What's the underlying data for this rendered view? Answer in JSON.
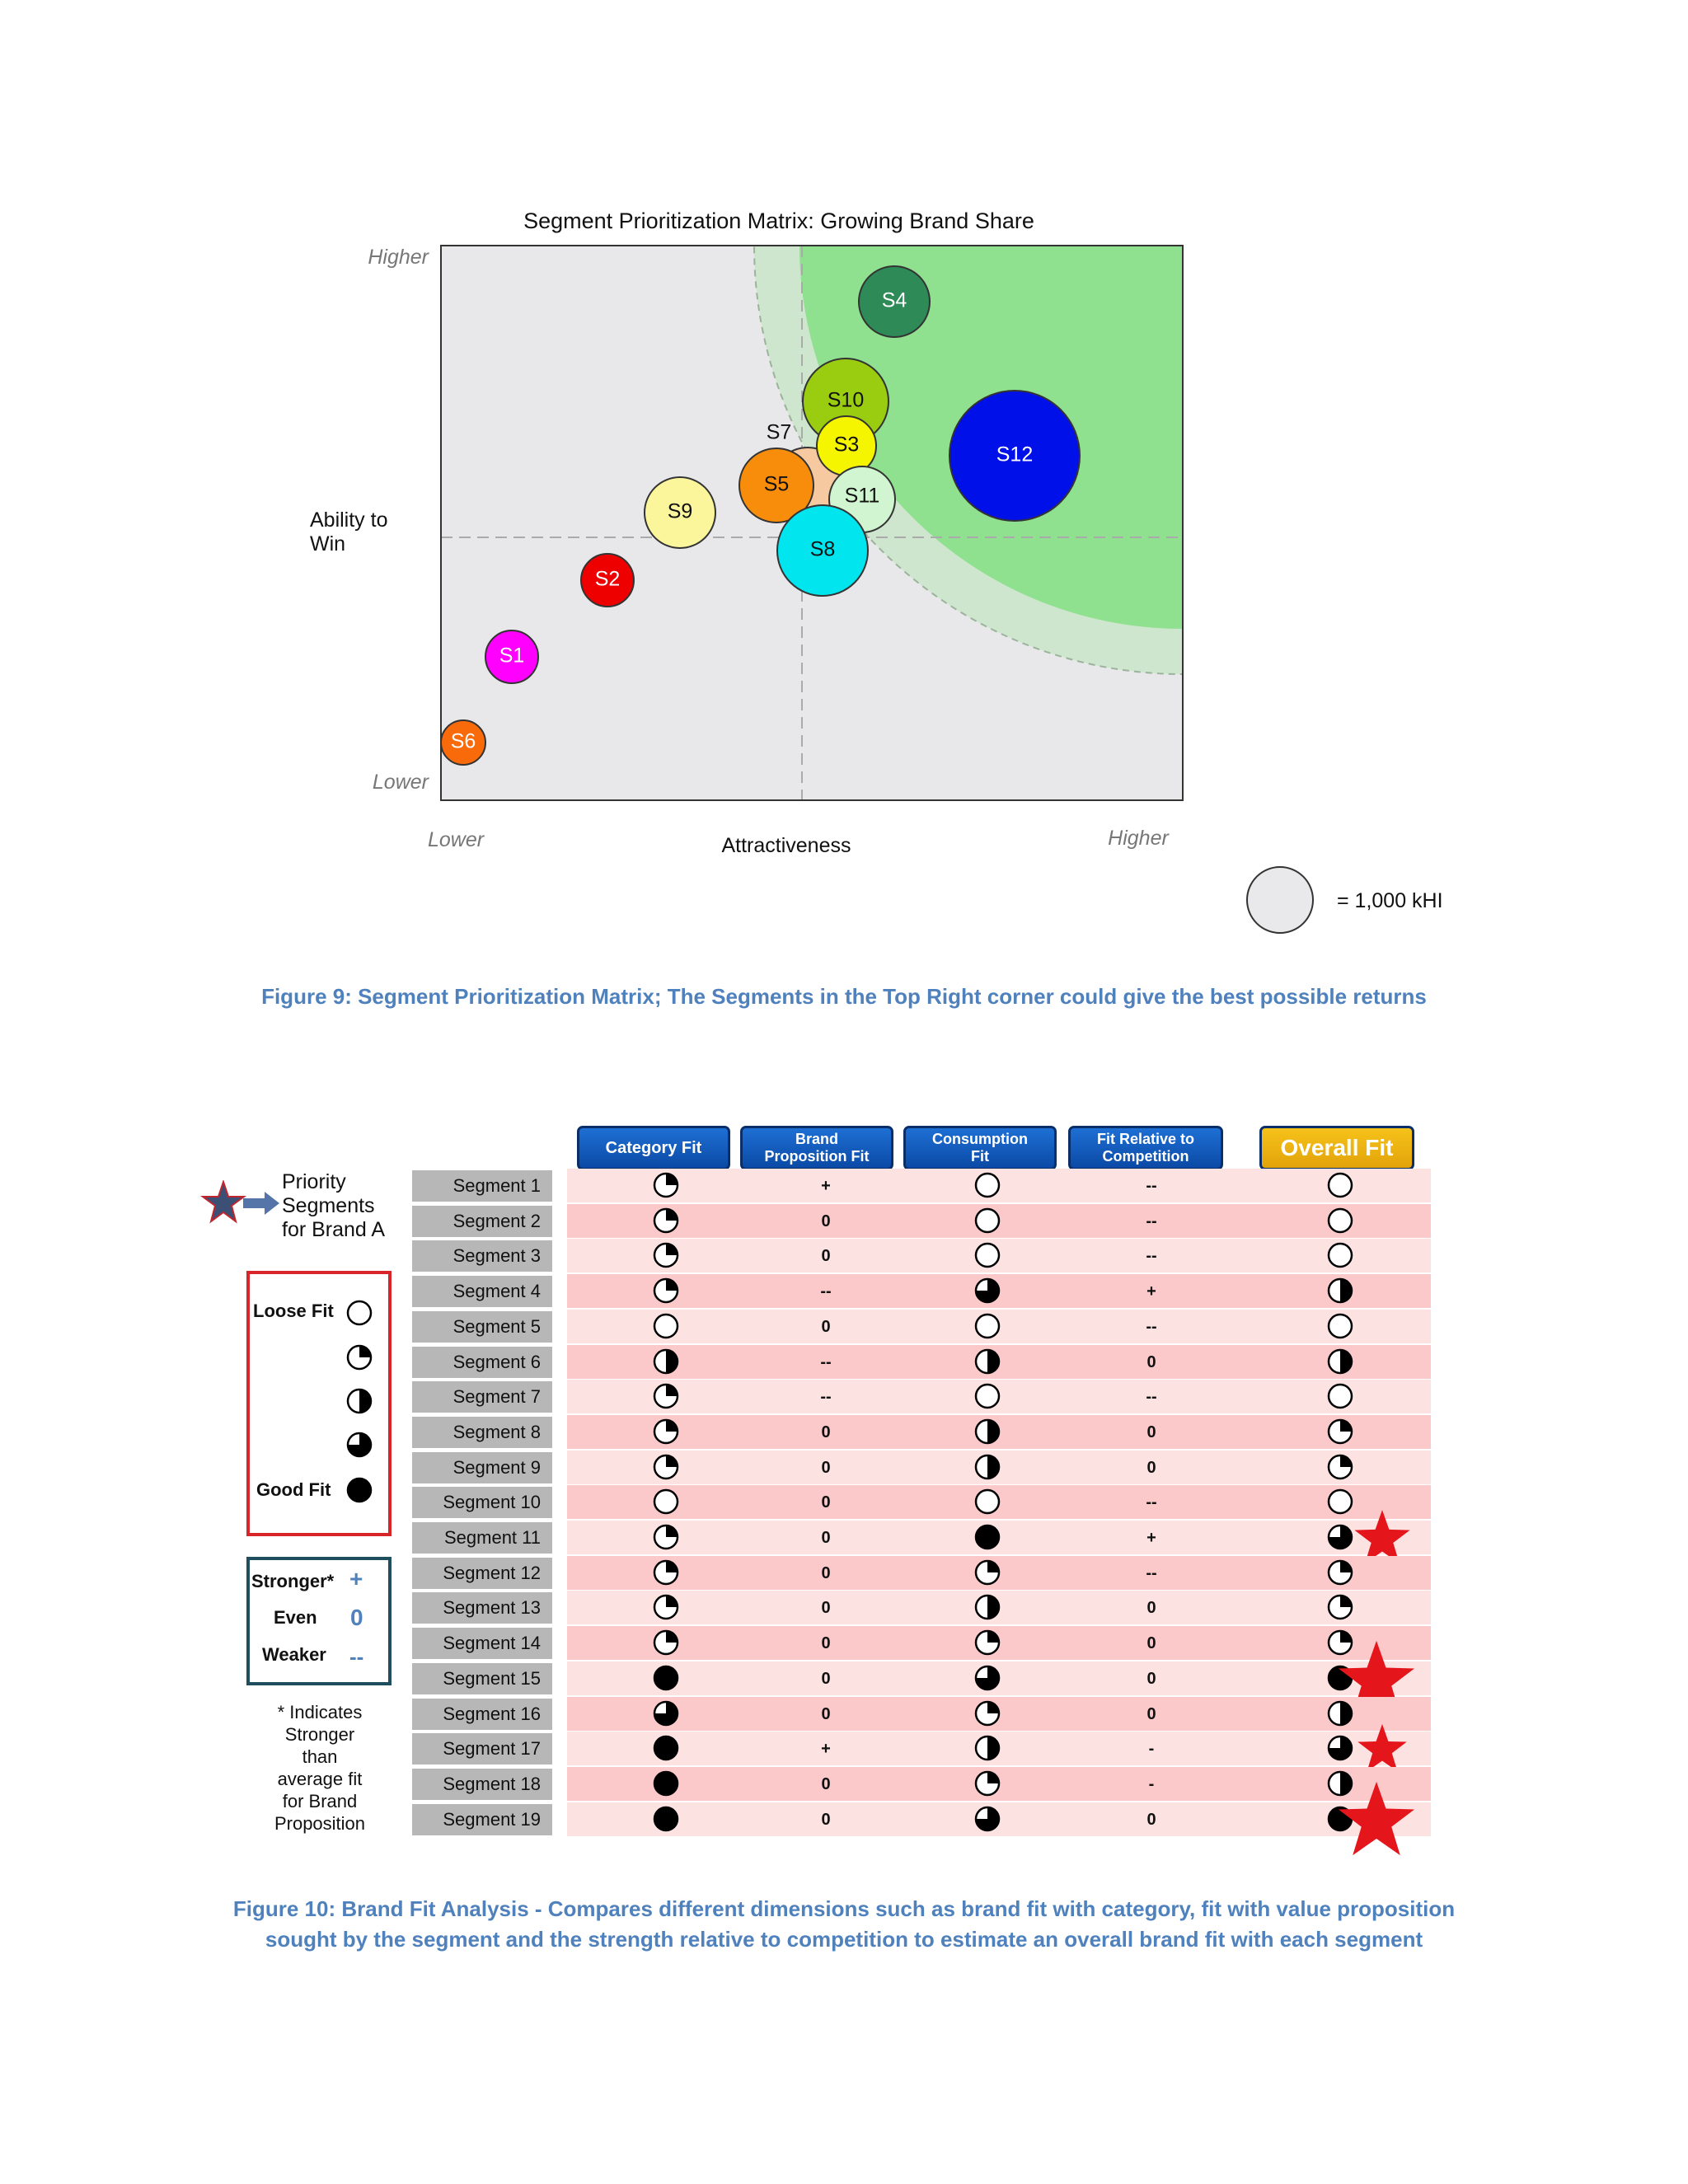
{
  "matrix": {
    "title": "Segment Prioritization Matrix: Growing Brand Share",
    "y_axis": {
      "label_line1": "Ability to",
      "label_line2": "Win",
      "high": "Higher",
      "low": "Lower"
    },
    "x_axis": {
      "label": "Attractiveness",
      "low": "Lower",
      "high": "Higher"
    },
    "size_legend": {
      "text": "= 1,000 kHI"
    },
    "colors": {
      "plot_bg": "#e8e8ea",
      "zone_outer": "#cde6cd",
      "zone_inner": "#8fe08f"
    },
    "bubbles": [
      {
        "label": "S4",
        "color": "#2e8b57",
        "text_color": "#ffffff"
      },
      {
        "label": "S10",
        "color": "#9acd0f",
        "text_color": "#111111"
      },
      {
        "label": "S12",
        "color": "#0010e8",
        "text_color": "#ffffff"
      },
      {
        "label": "S7",
        "color": "#f7c9a1",
        "text_color": "#111111"
      },
      {
        "label": "S3",
        "color": "#f5f500",
        "text_color": "#111111"
      },
      {
        "label": "S11",
        "color": "#d0f5d0",
        "text_color": "#111111"
      },
      {
        "label": "S5",
        "color": "#f78d0a",
        "text_color": "#111111"
      },
      {
        "label": "S9",
        "color": "#fbf59b",
        "text_color": "#111111"
      },
      {
        "label": "S8",
        "color": "#00e5ee",
        "text_color": "#111111"
      },
      {
        "label": "S2",
        "color": "#ee0000",
        "text_color": "#ffffff"
      },
      {
        "label": "S1",
        "color": "#ff00ff",
        "text_color": "#ffffff"
      },
      {
        "label": "S6",
        "color": "#f86a0a",
        "text_color": "#ffffff"
      }
    ]
  },
  "caption_fig9": "Figure 9: Segment Prioritization Matrix; The Segments in the Top Right corner could give the best possible returns",
  "table": {
    "headers": {
      "category_fit": "Category Fit",
      "brand_prop_fit_l1": "Brand",
      "brand_prop_fit_l2": "Proposition Fit",
      "consumption_fit_l1": "Consumption",
      "consumption_fit_l2": "Fit",
      "fit_rel_comp_l1": "Fit Relative to",
      "fit_rel_comp_l2": "Competition",
      "overall_fit": "Overall Fit"
    },
    "legend": {
      "priority_line1": "Priority",
      "priority_line2": "Segments",
      "priority_line3": "for Brand A",
      "loose_fit": "Loose Fit",
      "good_fit": "Good Fit",
      "stronger": "Stronger*",
      "stronger_sym": "+",
      "even": "Even",
      "even_sym": "0",
      "weaker": "Weaker",
      "weaker_sym": "--",
      "note_l1": "* Indicates",
      "note_l2": "Stronger",
      "note_l3": "than",
      "note_l4": "average  fit",
      "note_l5": "for Brand",
      "note_l6": "Proposition"
    },
    "fill_scale": "0 = empty, 0.25 = quarter, 0.5 = half, 0.75 = three-quarter, 1 = full",
    "rows": [
      {
        "segment": "Segment 1",
        "category": 0.25,
        "brand": "+",
        "consumption": 0,
        "competition": "--",
        "overall": 0,
        "priority": false
      },
      {
        "segment": "Segment 2",
        "category": 0.25,
        "brand": "0",
        "consumption": 0,
        "competition": "--",
        "overall": 0,
        "priority": false
      },
      {
        "segment": "Segment 3",
        "category": 0.25,
        "brand": "0",
        "consumption": 0,
        "competition": "--",
        "overall": 0,
        "priority": false
      },
      {
        "segment": "Segment 4",
        "category": 0.25,
        "brand": "--",
        "consumption": 0.75,
        "competition": "+",
        "overall": 0.5,
        "priority": false
      },
      {
        "segment": "Segment 5",
        "category": 0,
        "brand": "0",
        "consumption": 0,
        "competition": "--",
        "overall": 0,
        "priority": false
      },
      {
        "segment": "Segment 6",
        "category": 0.5,
        "brand": "--",
        "consumption": 0.5,
        "competition": "0",
        "overall": 0.5,
        "priority": false
      },
      {
        "segment": "Segment 7",
        "category": 0.25,
        "brand": "--",
        "consumption": 0,
        "competition": "--",
        "overall": 0,
        "priority": false
      },
      {
        "segment": "Segment 8",
        "category": 0.25,
        "brand": "0",
        "consumption": 0.5,
        "competition": "0",
        "overall": 0.25,
        "priority": false
      },
      {
        "segment": "Segment 9",
        "category": 0.25,
        "brand": "0",
        "consumption": 0.5,
        "competition": "0",
        "overall": 0.25,
        "priority": false
      },
      {
        "segment": "Segment 10",
        "category": 0,
        "brand": "0",
        "consumption": 0,
        "competition": "--",
        "overall": 0,
        "priority": false
      },
      {
        "segment": "Segment 11",
        "category": 0.25,
        "brand": "0",
        "consumption": 1,
        "competition": "+",
        "overall": 0.75,
        "priority": true
      },
      {
        "segment": "Segment 12",
        "category": 0.25,
        "brand": "0",
        "consumption": 0.25,
        "competition": "--",
        "overall": 0.25,
        "priority": false
      },
      {
        "segment": "Segment  13",
        "category": 0.25,
        "brand": "0",
        "consumption": 0.5,
        "competition": "0",
        "overall": 0.25,
        "priority": false
      },
      {
        "segment": "Segment  14",
        "category": 0.25,
        "brand": "0",
        "consumption": 0.25,
        "competition": "0",
        "overall": 0.25,
        "priority": false
      },
      {
        "segment": "Segment  15",
        "category": 1,
        "brand": "0",
        "consumption": 0.75,
        "competition": "0",
        "overall": 1,
        "priority": true
      },
      {
        "segment": "Segment  16",
        "category": 0.75,
        "brand": "0",
        "consumption": 0.25,
        "competition": "0",
        "overall": 0.5,
        "priority": false
      },
      {
        "segment": "Segment  17",
        "category": 1,
        "brand": "+",
        "consumption": 0.5,
        "competition": "-",
        "overall": 0.75,
        "priority": true
      },
      {
        "segment": "Segment  18",
        "category": 1,
        "brand": "0",
        "consumption": 0.25,
        "competition": "-",
        "overall": 0.5,
        "priority": false
      },
      {
        "segment": "Segment  19",
        "category": 1,
        "brand": "0",
        "consumption": 0.75,
        "competition": "0",
        "overall": 1,
        "priority": true
      }
    ]
  },
  "caption_fig10_line1": "Figure 10: Brand Fit Analysis - Compares different dimensions such as brand fit with category, fit with value proposition",
  "caption_fig10_line2": "sought by the segment and the strength relative to competition to estimate an overall brand fit with each segment"
}
